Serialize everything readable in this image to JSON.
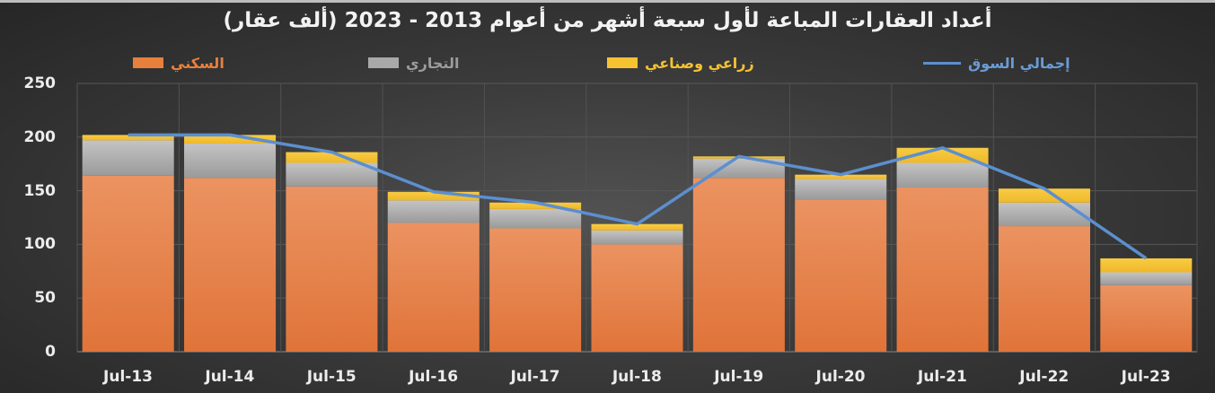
{
  "chart_data": {
    "type": "bar",
    "stacked": true,
    "title": "أعداد العقارات المباعة لأول سبعة أشهر من أعوام 2013 - 2023 (ألف عقار)",
    "xlabel": "",
    "ylabel": "",
    "ylim": [
      0,
      250
    ],
    "yticks": [
      0,
      50,
      100,
      150,
      200,
      250
    ],
    "grid": true,
    "legend_position": "top",
    "categories": [
      "Jul-13",
      "Jul-14",
      "Jul-15",
      "Jul-16",
      "Jul-17",
      "Jul-18",
      "Jul-19",
      "Jul-20",
      "Jul-21",
      "Jul-22",
      "Jul-23"
    ],
    "series": [
      {
        "name": "السكني",
        "kind": "bar",
        "color": "#e8803d",
        "values": [
          164,
          162,
          154,
          120,
          115,
          100,
          162,
          142,
          153,
          117,
          62
        ]
      },
      {
        "name": "التجاري",
        "kind": "bar",
        "color": "#a9a9a9",
        "values": [
          33,
          32,
          22,
          21,
          18,
          13,
          18,
          19,
          23,
          22,
          12
        ]
      },
      {
        "name": "زراعي وصناعي",
        "kind": "bar",
        "color": "#f5c232",
        "values": [
          5,
          8,
          10,
          8,
          6,
          6,
          2,
          4,
          14,
          13,
          13
        ]
      },
      {
        "name": "إجمالي السوق",
        "kind": "line",
        "color": "#5b8fd0",
        "values": [
          202,
          202,
          186,
          149,
          139,
          119,
          182,
          165,
          190,
          152,
          87
        ]
      }
    ]
  },
  "legend": [
    {
      "label": "السكني",
      "color": "#e8803d",
      "text_color": "#e8803d",
      "type": "swatch"
    },
    {
      "label": "التجاري",
      "color": "#a9a9a9",
      "text_color": "#9c9c9c",
      "type": "swatch"
    },
    {
      "label": "زراعي وصناعي",
      "color": "#f5c232",
      "text_color": "#f5c232",
      "type": "swatch"
    },
    {
      "label": "إجمالي السوق",
      "color": "#5b8fd0",
      "text_color": "#6a9bd6",
      "type": "line"
    }
  ]
}
